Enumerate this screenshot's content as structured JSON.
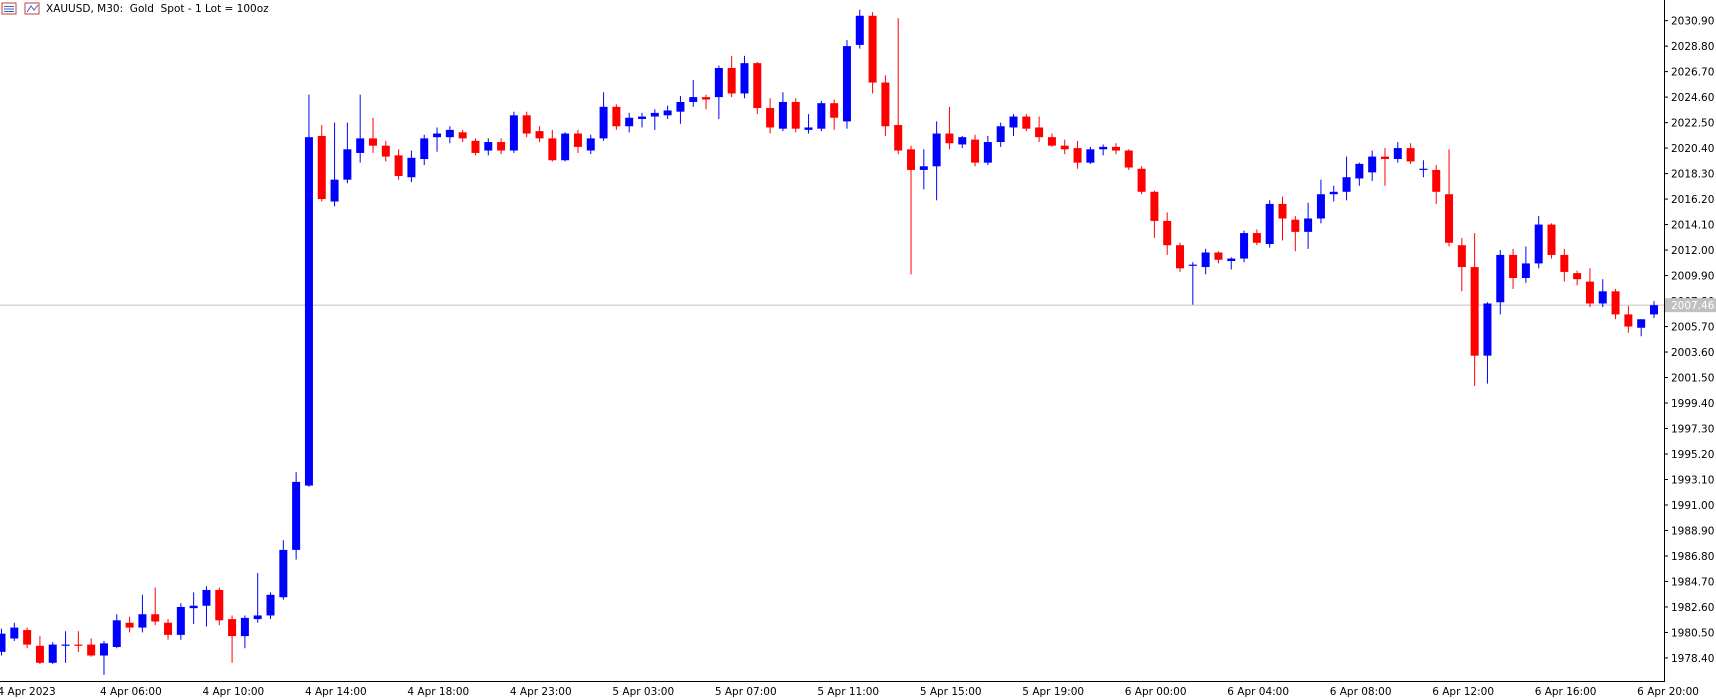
{
  "chart_data": {
    "type": "candlestick",
    "title": "XAUUSD, M30:  Gold  Spot - 1 Lot = 100oz",
    "up_color": "#0000ff",
    "down_color": "#ff0000",
    "categories": [
      "4 Apr 2023",
      null,
      null,
      null,
      null,
      null,
      null,
      null,
      "4 Apr 06:00",
      null,
      null,
      null,
      null,
      null,
      null,
      null,
      "4 Apr 10:00",
      null,
      null,
      null,
      null,
      null,
      null,
      null,
      "4 Apr 14:00",
      null,
      null,
      null,
      null,
      null,
      null,
      null,
      "4 Apr 18:00",
      null,
      null,
      null,
      null,
      null,
      null,
      null,
      "4 Apr 23:00",
      null,
      null,
      null,
      null,
      null,
      null,
      null,
      "5 Apr 03:00",
      null,
      null,
      null,
      null,
      null,
      null,
      null,
      "5 Apr 07:00",
      null,
      null,
      null,
      null,
      null,
      null,
      null,
      "5 Apr 11:00",
      null,
      null,
      null,
      null,
      null,
      null,
      null,
      "5 Apr 15:00",
      null,
      null,
      null,
      null,
      null,
      null,
      null,
      "5 Apr 19:00",
      null,
      null,
      null,
      null,
      null,
      null,
      null,
      "6 Apr 00:00",
      null,
      null,
      null,
      null,
      null,
      null,
      null,
      "6 Apr 04:00",
      null,
      null,
      null,
      null,
      null,
      null,
      null,
      "6 Apr 08:00",
      null,
      null,
      null,
      null,
      null,
      null,
      null,
      "6 Apr 12:00",
      null,
      null,
      null,
      null,
      null,
      null,
      null,
      "6 Apr 16:00",
      null,
      null,
      null,
      null,
      null,
      null,
      null,
      "6 Apr 20:00",
      null
    ],
    "open": [
      1978.9,
      1980.0,
      1980.7,
      1979.4,
      1978.0,
      1979.4,
      1979.5,
      1979.5,
      1978.6,
      1979.3,
      1981.3,
      1980.9,
      1982.0,
      1981.3,
      1980.3,
      1982.5,
      1982.7,
      1984.0,
      1981.6,
      1980.2,
      1981.6,
      1981.9,
      1983.4,
      1987.3,
      1992.6,
      2021.4,
      2016.0,
      2017.8,
      2020.0,
      2021.2,
      2020.6,
      2019.8,
      2018.0,
      2019.5,
      2021.3,
      2021.3,
      2021.7,
      2021.0,
      2020.2,
      2020.9,
      2020.2,
      2023.1,
      2021.8,
      2021.2,
      2019.4,
      2021.6,
      2020.2,
      2021.2,
      2023.8,
      2022.2,
      2022.8,
      2023.0,
      2023.1,
      2023.4,
      2024.2,
      2024.6,
      2024.6,
      2027.0,
      2024.9,
      2027.4,
      2023.7,
      2022.0,
      2024.2,
      2021.9,
      2022.0,
      2024.1,
      2022.6,
      2028.9,
      2031.3,
      2025.8,
      2022.3,
      2020.3,
      2018.6,
      2018.9,
      2021.6,
      2020.7,
      2021.1,
      2019.2,
      2020.9,
      2022.1,
      2023.0,
      2022.1,
      2021.3,
      2020.6,
      2020.4,
      2019.2,
      2020.3,
      2020.5,
      2020.2,
      2018.7,
      2016.8,
      2014.4,
      2012.4,
      2010.7,
      2010.6,
      2011.8,
      2011.1,
      2011.3,
      2013.4,
      2012.5,
      2015.8,
      2014.5,
      2013.5,
      2014.6,
      2016.6,
      2016.8,
      2017.9,
      2018.4,
      2019.7,
      2019.5,
      2020.4,
      2018.6,
      2018.6,
      2016.6,
      2012.4,
      2010.6,
      2003.3,
      2007.7,
      2011.6,
      2009.7,
      2010.9,
      2014.1,
      2011.6,
      2010.1,
      2009.4,
      2007.6,
      2008.6,
      2006.7,
      2005.6,
      2006.7
    ],
    "high": [
      1980.8,
      1981.3,
      1980.9,
      1980.2,
      1979.7,
      1980.6,
      1980.6,
      1980.0,
      1979.8,
      1982.0,
      1981.8,
      1983.6,
      1984.2,
      1981.6,
      1982.9,
      1983.8,
      1984.3,
      1984.2,
      1981.9,
      1981.9,
      1985.4,
      1983.8,
      1988.1,
      1993.7,
      2024.8,
      2022.3,
      2022.5,
      2022.5,
      2024.8,
      2022.9,
      2021.0,
      2020.3,
      2020.2,
      2021.5,
      2022.1,
      2022.2,
      2021.9,
      2021.2,
      2021.2,
      2021.2,
      2023.4,
      2023.4,
      2022.2,
      2021.9,
      2021.7,
      2021.9,
      2021.5,
      2025.0,
      2024.0,
      2023.3,
      2023.3,
      2023.6,
      2023.9,
      2024.7,
      2026.0,
      2024.8,
      2027.2,
      2028.0,
      2028.0,
      2027.5,
      2024.5,
      2025.0,
      2024.5,
      2023.2,
      2024.3,
      2024.4,
      2029.3,
      2031.8,
      2031.6,
      2026.4,
      2031.1,
      2020.6,
      2020.3,
      2022.6,
      2023.8,
      2021.4,
      2021.5,
      2021.4,
      2022.5,
      2023.2,
      2023.2,
      2023.0,
      2021.6,
      2021.1,
      2021.0,
      2020.5,
      2020.7,
      2020.8,
      2020.3,
      2018.9,
      2016.9,
      2015.1,
      2012.6,
      2011.0,
      2012.1,
      2011.9,
      2011.4,
      2013.6,
      2013.7,
      2016.1,
      2016.4,
      2014.8,
      2015.9,
      2017.8,
      2017.3,
      2019.7,
      2019.2,
      2020.2,
      2020.4,
      2020.9,
      2020.8,
      2019.4,
      2019.0,
      2020.3,
      2013.0,
      2013.4,
      2007.7,
      2012.0,
      2012.1,
      2012.3,
      2014.8,
      2014.2,
      2012.1,
      2010.3,
      2010.5,
      2009.6,
      2008.8,
      2007.4,
      2006.3,
      2007.8
    ],
    "low": [
      1978.6,
      1979.8,
      1979.2,
      1977.9,
      1977.9,
      1978.0,
      1978.9,
      1978.5,
      1977.0,
      1979.2,
      1980.5,
      1980.5,
      1981.1,
      1979.9,
      1979.9,
      1981.2,
      1981.0,
      1981.1,
      1978.0,
      1979.2,
      1981.3,
      1981.6,
      1983.2,
      1986.5,
      1992.5,
      2016.0,
      2015.6,
      2017.5,
      2019.2,
      2020.0,
      2019.3,
      2017.8,
      2017.6,
      2019.0,
      2020.1,
      2020.8,
      2020.9,
      2019.8,
      2019.8,
      2019.9,
      2020.0,
      2021.3,
      2020.9,
      2019.3,
      2019.3,
      2020.0,
      2019.9,
      2021.0,
      2021.9,
      2021.7,
      2022.1,
      2021.9,
      2022.8,
      2022.4,
      2023.8,
      2023.6,
      2022.8,
      2024.6,
      2024.5,
      2023.2,
      2021.6,
      2021.8,
      2021.7,
      2021.6,
      2021.8,
      2021.9,
      2022.0,
      2028.6,
      2024.9,
      2021.4,
      2019.9,
      2010.0,
      2017.0,
      2016.1,
      2020.3,
      2020.4,
      2018.9,
      2019.0,
      2020.5,
      2021.4,
      2021.8,
      2020.9,
      2020.5,
      2019.9,
      2018.7,
      2019.1,
      2019.8,
      2019.9,
      2018.6,
      2016.6,
      2013.0,
      2011.6,
      2010.2,
      2007.5,
      2010.0,
      2010.9,
      2010.4,
      2011.0,
      2012.4,
      2012.2,
      2012.8,
      2011.9,
      2012.1,
      2014.2,
      2016.0,
      2016.1,
      2017.3,
      2017.7,
      2017.3,
      2019.2,
      2019.1,
      2018.0,
      2015.8,
      2012.3,
      2008.6,
      2000.8,
      2001.0,
      2006.7,
      2008.8,
      2009.3,
      2010.5,
      2011.3,
      2009.4,
      2009.1,
      2007.3,
      2007.3,
      2006.3,
      2005.2,
      2004.9,
      2006.4
    ],
    "close": [
      1980.4,
      1980.9,
      1979.5,
      1978.0,
      1979.5,
      1979.5,
      1979.4,
      1978.6,
      1979.6,
      1981.5,
      1980.9,
      1982.0,
      1981.4,
      1980.3,
      1982.6,
      1982.7,
      1984.0,
      1981.5,
      1980.2,
      1981.7,
      1981.9,
      1983.6,
      1987.3,
      1992.9,
      2021.3,
      2016.2,
      2017.8,
      2020.3,
      2021.2,
      2020.6,
      2019.7,
      2018.1,
      2019.6,
      2021.2,
      2021.6,
      2021.9,
      2021.2,
      2020.0,
      2020.9,
      2020.2,
      2023.1,
      2021.6,
      2021.2,
      2019.4,
      2021.6,
      2020.5,
      2021.2,
      2023.8,
      2022.2,
      2022.9,
      2023.0,
      2023.3,
      2023.5,
      2024.2,
      2024.6,
      2024.4,
      2027.0,
      2024.9,
      2027.4,
      2023.7,
      2022.1,
      2024.2,
      2022.0,
      2022.1,
      2024.1,
      2022.9,
      2028.8,
      2031.3,
      2025.8,
      2022.2,
      2020.2,
      2018.6,
      2018.9,
      2021.6,
      2020.8,
      2021.3,
      2019.2,
      2020.9,
      2022.2,
      2023.0,
      2022.0,
      2021.3,
      2020.6,
      2020.3,
      2019.2,
      2020.3,
      2020.5,
      2020.2,
      2018.8,
      2016.8,
      2014.4,
      2012.4,
      2010.5,
      2010.8,
      2011.8,
      2011.2,
      2011.3,
      2013.4,
      2012.6,
      2015.8,
      2014.6,
      2013.5,
      2014.6,
      2016.6,
      2016.8,
      2018.0,
      2019.1,
      2019.7,
      2019.5,
      2020.4,
      2019.3,
      2018.7,
      2016.8,
      2012.6,
      2010.6,
      2003.3,
      2007.6,
      2011.6,
      2009.7,
      2010.9,
      2014.1,
      2011.6,
      2010.2,
      2009.6,
      2007.6,
      2008.6,
      2006.7,
      2005.7,
      2006.3,
      2007.46
    ],
    "ylim": [
      1976.5,
      2032.6
    ],
    "yticks": [
      {
        "value": 2030.9,
        "label": "2030.90"
      },
      {
        "value": 2028.8,
        "label": "2028.80"
      },
      {
        "value": 2026.7,
        "label": "2026.70"
      },
      {
        "value": 2024.6,
        "label": "2024.60"
      },
      {
        "value": 2022.5,
        "label": "2022.50"
      },
      {
        "value": 2020.4,
        "label": "2020.40"
      },
      {
        "value": 2018.3,
        "label": "2018.30"
      },
      {
        "value": 2016.2,
        "label": "2016.20"
      },
      {
        "value": 2014.1,
        "label": "2014.10"
      },
      {
        "value": 2012.0,
        "label": "2012.00"
      },
      {
        "value": 2009.9,
        "label": "2009.90"
      },
      {
        "value": 2007.8,
        "label": "2007.80"
      },
      {
        "value": 2005.7,
        "label": "2005.70"
      },
      {
        "value": 2003.6,
        "label": "2003.60"
      },
      {
        "value": 2001.5,
        "label": "2001.50"
      },
      {
        "value": 1999.4,
        "label": "1999.40"
      },
      {
        "value": 1997.3,
        "label": "1997.30"
      },
      {
        "value": 1995.2,
        "label": "1995.20"
      },
      {
        "value": 1993.1,
        "label": "1993.10"
      },
      {
        "value": 1991.0,
        "label": "1991.00"
      },
      {
        "value": 1988.9,
        "label": "1988.90"
      },
      {
        "value": 1986.8,
        "label": "1986.80"
      },
      {
        "value": 1984.7,
        "label": "1984.70"
      },
      {
        "value": 1982.6,
        "label": "1982.60"
      },
      {
        "value": 1980.5,
        "label": "1980.50"
      },
      {
        "value": 1978.4,
        "label": "1978.40"
      }
    ],
    "current_price": {
      "value": 2007.46,
      "label": "2007.46"
    },
    "grid": false
  }
}
